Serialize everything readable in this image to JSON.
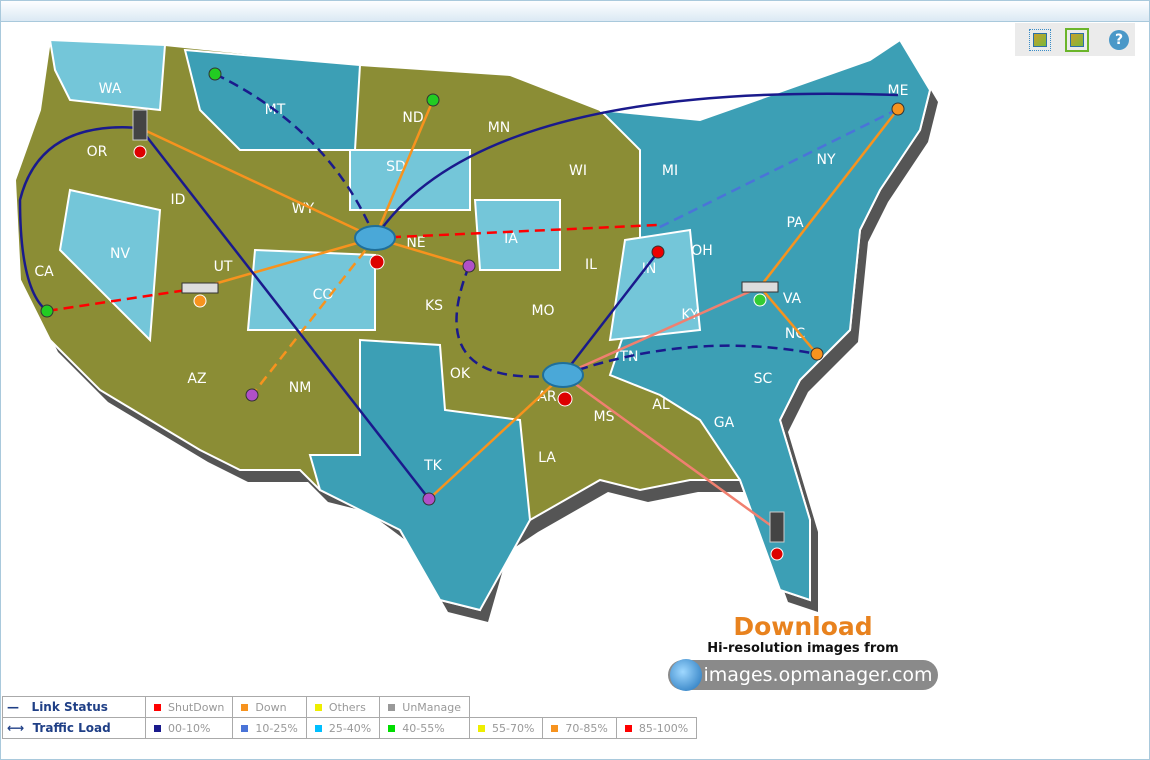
{
  "toolbar": {
    "buttons": [
      {
        "icon": "map-view-icon"
      },
      {
        "icon": "fit-to-screen-icon"
      },
      {
        "icon": "help-icon",
        "label": "?"
      }
    ]
  },
  "map": {
    "states": [
      "WA",
      "OR",
      "CA",
      "NV",
      "ID",
      "MT",
      "WY",
      "UT",
      "CO",
      "AZ",
      "NM",
      "ND",
      "SD",
      "NE",
      "KS",
      "OK",
      "TK",
      "MN",
      "IA",
      "MO",
      "AR",
      "LA",
      "WI",
      "IL",
      "MI",
      "IN",
      "OH",
      "KY",
      "TN",
      "MS",
      "AL",
      "GA",
      "SC",
      "NC",
      "VA",
      "PA",
      "NY",
      "ME"
    ],
    "colors": {
      "olive": "#8b8d35",
      "teal": "#3c9fb5",
      "light": "#74c6d9"
    }
  },
  "legend": {
    "link_status": {
      "label": "Link Status",
      "items": [
        {
          "label": "ShutDown",
          "color": "#ff0000"
        },
        {
          "label": "Down",
          "color": "#f7931e"
        },
        {
          "label": "Others",
          "color": "#eeee00"
        },
        {
          "label": "UnManage",
          "color": "#999999"
        }
      ]
    },
    "traffic_load": {
      "label": "Traffic Load",
      "items": [
        {
          "label": "00-10%",
          "color": "#1a1a8c"
        },
        {
          "label": "10-25%",
          "color": "#4a74d8"
        },
        {
          "label": "25-40%",
          "color": "#00bfff"
        },
        {
          "label": "40-55%",
          "color": "#00dd00"
        },
        {
          "label": "55-70%",
          "color": "#eeee00"
        },
        {
          "label": "70-85%",
          "color": "#f7931e"
        },
        {
          "label": "85-100%",
          "color": "#ff0000"
        }
      ]
    }
  },
  "promo": {
    "title": "Download",
    "subtitle": "Hi-resolution images from",
    "site": "images.opmanager.com"
  }
}
